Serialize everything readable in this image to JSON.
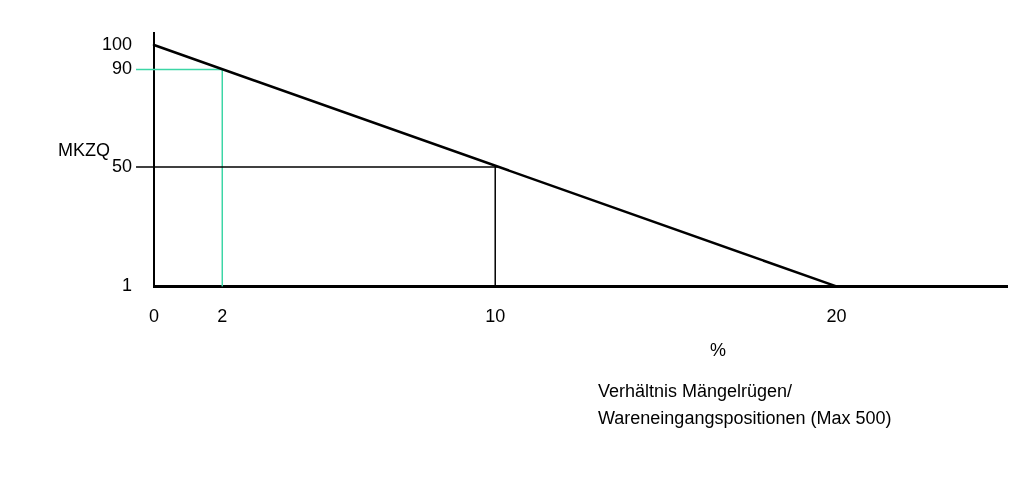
{
  "chart_data": {
    "type": "line",
    "ylabel": "MKZQ",
    "xlabel": "Verhältnis Mängelrügen/ Wareneingangspositionen (Max 500)",
    "annotations": [
      "%"
    ],
    "series": [
      {
        "x": [
          0,
          20
        ],
        "values": [
          100,
          1
        ],
        "color": "#000000"
      }
    ],
    "xlim": [
      0,
      25
    ],
    "ylim": [
      1,
      105
    ],
    "xticks": [
      0,
      2,
      10,
      20
    ],
    "yticks": [
      1,
      50,
      90,
      100
    ],
    "ref_lines": [
      {
        "axis": "x",
        "value": 2,
        "color": "#3cd6a6"
      },
      {
        "axis": "y",
        "value": 90,
        "color": "#3cd6a6"
      },
      {
        "axis": "x",
        "value": 10,
        "color": "#000000"
      },
      {
        "axis": "y",
        "value": 50,
        "color": "#000000"
      }
    ],
    "grid": false,
    "legend": false,
    "marker": "none",
    "line_style": "solid"
  }
}
